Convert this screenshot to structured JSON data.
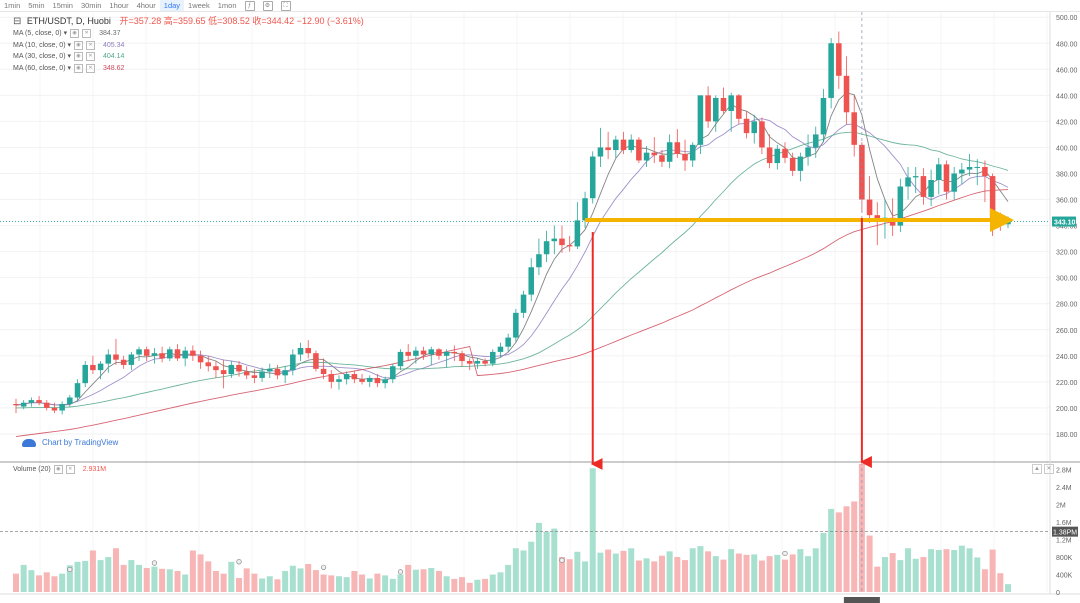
{
  "toolbar": {
    "timeframes": [
      "1min",
      "5min",
      "15min",
      "30min",
      "1hour",
      "4hour",
      "1day",
      "1week",
      "1mon"
    ],
    "active": "1day",
    "icons": [
      "indicator-icon",
      "settings-icon",
      "fullscreen-icon"
    ]
  },
  "legend": {
    "symbol": "ETH/USDT, D, Huobi",
    "open_label": "开=",
    "open": "357.28",
    "high_label": "高=",
    "high": "359.65",
    "low_label": "低=",
    "low": "308.52",
    "close_label": "收=",
    "close": "344.42",
    "change": "−12.90 (−3.61%)",
    "mas": [
      {
        "label": "MA (5, close, 0)",
        "value": "384.37",
        "color": "#6e6e6e"
      },
      {
        "label": "MA (10, close, 0)",
        "value": "405.34",
        "color": "#8e7cc3"
      },
      {
        "label": "MA (30, close, 0)",
        "value": "404.14",
        "color": "#52a88a"
      },
      {
        "label": "MA (60, close, 0)",
        "value": "348.62",
        "color": "#d04a5a"
      }
    ]
  },
  "volume_legend": {
    "label": "Volume (20)",
    "value": "2.931M"
  },
  "credit": "Chart by TradingView",
  "price_tag": "343.10",
  "volume_tag": "1.38PM",
  "colors": {
    "up": "#26a69a",
    "down": "#ef5350",
    "up_vol": "#a8e0cf",
    "down_vol": "#f7b5b5",
    "arrow_red": "#ee2a24",
    "arrow_gold": "#f4b400"
  },
  "chart_data": {
    "type": "candlestick",
    "price_axis": {
      "ticks": [
        180,
        200,
        220,
        240,
        260,
        280,
        300,
        320,
        340,
        360,
        380,
        400,
        420,
        440,
        460,
        480,
        500
      ],
      "range": [
        160,
        504
      ]
    },
    "volume_axis": {
      "ticks": [
        "0",
        "400K",
        "800K",
        "1.2M",
        "1.6M",
        "2M",
        "2.4M",
        "2.8M"
      ],
      "tick_values": [
        0,
        0.4,
        0.8,
        1.2,
        1.6,
        2.0,
        2.4,
        2.8
      ],
      "range": [
        0,
        2.95
      ]
    },
    "candles": [
      [
        203,
        207,
        196,
        202,
        0.42
      ],
      [
        201,
        206,
        199,
        204,
        0.62
      ],
      [
        204,
        208,
        201,
        206,
        0.5
      ],
      [
        206,
        209,
        202,
        204,
        0.38
      ],
      [
        204,
        206,
        198,
        200,
        0.45
      ],
      [
        200,
        204,
        196,
        198,
        0.36
      ],
      [
        198,
        205,
        195,
        203,
        0.42
      ],
      [
        203,
        210,
        201,
        208,
        0.61
      ],
      [
        208,
        222,
        205,
        219,
        0.69
      ],
      [
        219,
        236,
        216,
        233,
        0.71
      ],
      [
        233,
        240,
        226,
        229,
        0.95
      ],
      [
        229,
        236,
        222,
        234,
        0.73
      ],
      [
        234,
        245,
        227,
        241,
        0.8
      ],
      [
        241,
        253,
        233,
        237,
        1.0
      ],
      [
        237,
        240,
        230,
        233,
        0.62
      ],
      [
        233,
        243,
        229,
        241,
        0.73
      ],
      [
        241,
        247,
        236,
        245,
        0.62
      ],
      [
        245,
        247,
        236,
        240,
        0.55
      ],
      [
        240,
        246,
        234,
        242,
        0.58
      ],
      [
        242,
        247,
        235,
        238,
        0.53
      ],
      [
        238,
        247,
        236,
        245,
        0.52
      ],
      [
        245,
        249,
        236,
        238,
        0.48
      ],
      [
        238,
        247,
        232,
        244,
        0.4
      ],
      [
        244,
        248,
        236,
        240,
        0.95
      ],
      [
        240,
        244,
        230,
        235,
        0.86
      ],
      [
        235,
        240,
        228,
        232,
        0.7
      ],
      [
        232,
        236,
        223,
        229,
        0.48
      ],
      [
        229,
        237,
        215,
        226,
        0.42
      ],
      [
        226,
        236,
        223,
        233,
        0.69
      ],
      [
        233,
        236,
        224,
        228,
        0.32
      ],
      [
        228,
        232,
        222,
        225,
        0.54
      ],
      [
        225,
        230,
        219,
        223,
        0.42
      ],
      [
        223,
        231,
        220,
        228,
        0.31
      ],
      [
        228,
        234,
        223,
        230,
        0.36
      ],
      [
        230,
        233,
        222,
        225,
        0.29
      ],
      [
        225,
        232,
        219,
        229,
        0.48
      ],
      [
        229,
        245,
        225,
        241,
        0.6
      ],
      [
        241,
        250,
        236,
        246,
        0.54
      ],
      [
        246,
        252,
        238,
        242,
        0.64
      ],
      [
        242,
        244,
        228,
        230,
        0.5
      ],
      [
        230,
        238,
        222,
        226,
        0.4
      ],
      [
        226,
        229,
        215,
        220,
        0.38
      ],
      [
        220,
        225,
        214,
        222,
        0.36
      ],
      [
        222,
        228,
        218,
        226,
        0.34
      ],
      [
        226,
        228,
        219,
        222,
        0.48
      ],
      [
        222,
        226,
        218,
        220,
        0.4
      ],
      [
        220,
        225,
        216,
        223,
        0.31
      ],
      [
        223,
        226,
        216,
        219,
        0.42
      ],
      [
        219,
        224,
        215,
        222,
        0.38
      ],
      [
        222,
        234,
        219,
        232,
        0.3
      ],
      [
        232,
        245,
        229,
        243,
        0.4
      ],
      [
        243,
        249,
        236,
        240,
        0.62
      ],
      [
        240,
        247,
        234,
        244,
        0.51
      ],
      [
        244,
        247,
        237,
        241,
        0.52
      ],
      [
        241,
        247,
        233,
        245,
        0.55
      ],
      [
        245,
        246,
        237,
        240,
        0.48
      ],
      [
        240,
        245,
        231,
        243,
        0.36
      ],
      [
        243,
        248,
        236,
        242,
        0.3
      ],
      [
        242,
        244,
        232,
        236,
        0.34
      ],
      [
        236,
        238,
        229,
        234,
        0.21
      ],
      [
        234,
        238,
        230,
        236,
        0.28
      ],
      [
        236,
        238,
        232,
        234,
        0.3
      ],
      [
        234,
        245,
        232,
        243,
        0.4
      ],
      [
        243,
        250,
        239,
        247,
        0.45
      ],
      [
        247,
        257,
        243,
        254,
        0.62
      ],
      [
        254,
        276,
        251,
        273,
        1.0
      ],
      [
        273,
        290,
        269,
        287,
        0.95
      ],
      [
        287,
        315,
        282,
        308,
        1.15
      ],
      [
        308,
        330,
        302,
        318,
        1.58
      ],
      [
        318,
        336,
        312,
        328,
        1.38
      ],
      [
        328,
        340,
        318,
        330,
        1.45
      ],
      [
        330,
        340,
        319,
        325,
        0.8
      ],
      [
        325,
        332,
        320,
        324,
        0.75
      ],
      [
        324,
        358,
        322,
        344,
        0.92
      ],
      [
        344,
        366,
        338,
        361,
        0.7
      ],
      [
        361,
        397,
        357,
        393,
        2.83
      ],
      [
        393,
        415,
        385,
        400,
        0.9
      ],
      [
        400,
        412,
        391,
        398,
        0.97
      ],
      [
        398,
        409,
        392,
        406,
        0.88
      ],
      [
        406,
        412,
        395,
        398,
        0.94
      ],
      [
        398,
        410,
        396,
        406,
        1.0
      ],
      [
        406,
        408,
        388,
        390,
        0.72
      ],
      [
        390,
        401,
        385,
        396,
        0.77
      ],
      [
        396,
        408,
        388,
        394,
        0.7
      ],
      [
        394,
        398,
        385,
        389,
        0.83
      ],
      [
        389,
        410,
        384,
        404,
        0.93
      ],
      [
        404,
        414,
        392,
        395,
        0.8
      ],
      [
        395,
        406,
        382,
        390,
        0.73
      ],
      [
        390,
        404,
        385,
        402,
        1.0
      ],
      [
        402,
        440,
        395,
        440,
        1.05
      ],
      [
        440,
        447,
        415,
        420,
        0.93
      ],
      [
        420,
        440,
        412,
        438,
        0.82
      ],
      [
        438,
        446,
        426,
        428,
        0.74
      ],
      [
        428,
        442,
        412,
        440,
        0.98
      ],
      [
        440,
        441,
        418,
        422,
        0.88
      ],
      [
        422,
        428,
        407,
        411,
        0.85
      ],
      [
        411,
        425,
        403,
        420,
        0.86
      ],
      [
        420,
        423,
        395,
        400,
        0.72
      ],
      [
        400,
        410,
        384,
        388,
        0.82
      ],
      [
        388,
        402,
        383,
        399,
        0.85
      ],
      [
        399,
        404,
        388,
        392,
        0.74
      ],
      [
        392,
        396,
        378,
        382,
        0.86
      ],
      [
        382,
        396,
        374,
        393,
        0.98
      ],
      [
        393,
        410,
        386,
        400,
        0.82
      ],
      [
        400,
        416,
        392,
        410,
        1.0
      ],
      [
        410,
        445,
        404,
        438,
        1.35
      ],
      [
        438,
        484,
        430,
        480,
        1.9
      ],
      [
        480,
        489,
        445,
        455,
        1.82
      ],
      [
        455,
        470,
        418,
        427,
        1.96
      ],
      [
        427,
        440,
        393,
        402,
        2.07
      ],
      [
        402,
        404,
        350,
        360,
        2.93
      ],
      [
        360,
        378,
        342,
        348,
        1.29
      ],
      [
        348,
        358,
        325,
        343,
        0.58
      ],
      [
        343,
        360,
        330,
        346,
        0.8
      ],
      [
        346,
        361,
        332,
        340,
        0.89
      ],
      [
        340,
        376,
        335,
        370,
        0.73
      ],
      [
        370,
        385,
        360,
        377,
        1.0
      ],
      [
        377,
        385,
        365,
        378,
        0.76
      ],
      [
        378,
        384,
        356,
        362,
        0.8
      ],
      [
        362,
        383,
        355,
        375,
        0.98
      ],
      [
        375,
        392,
        364,
        387,
        0.96
      ],
      [
        387,
        390,
        360,
        366,
        0.98
      ],
      [
        366,
        385,
        360,
        380,
        0.96
      ],
      [
        380,
        388,
        372,
        383,
        1.06
      ],
      [
        383,
        395,
        378,
        385,
        1.0
      ],
      [
        385,
        391,
        371,
        385,
        0.79
      ],
      [
        385,
        390,
        358,
        378,
        0.52
      ],
      [
        378,
        380,
        332,
        344,
        0.97
      ],
      [
        344,
        350,
        336,
        341,
        0.43
      ],
      [
        341,
        347,
        338,
        344,
        0.18
      ]
    ],
    "moving_averages": [
      "MA (5, close, 0)",
      "MA (10, close, 0)",
      "MA (30, close, 0)",
      "MA (60, close, 0)"
    ],
    "volume_ma_period": 20
  }
}
